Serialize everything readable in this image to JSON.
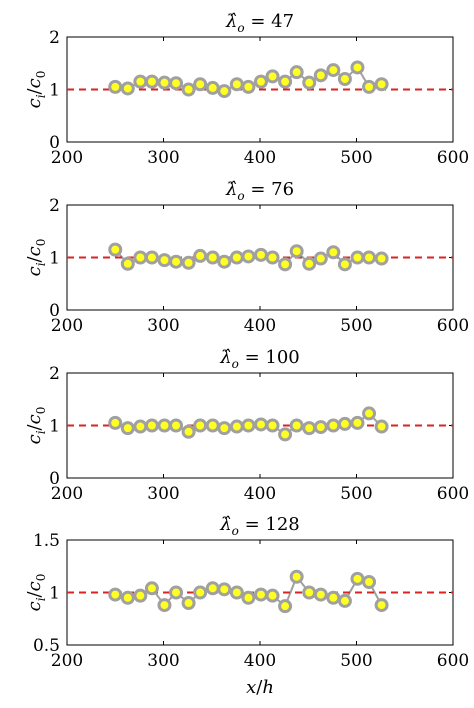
{
  "figure": {
    "xlabel_var": "x",
    "xlabel_sep": "/",
    "xlabel_var2": "h",
    "ylabel_var": "c",
    "ylabel_sub": "i",
    "ylabel_sep": "/",
    "ylabel_var2": "c",
    "ylabel_sub2": "0"
  },
  "colors": {
    "reference_line": "#dd2222",
    "marker_fill": "#ffff22",
    "marker_edge": "#a0a0a0",
    "axes": "#000000"
  },
  "chart_data": [
    {
      "type": "scatter",
      "title_symbol": "λ̂",
      "title_sub": "o",
      "title_value": "= 47",
      "xlim": [
        200,
        600
      ],
      "ylim": [
        0,
        2
      ],
      "xticks": [
        "200",
        "300",
        "400",
        "500",
        "600"
      ],
      "yticks": [
        "0",
        "1",
        "2"
      ],
      "reference_line": 1,
      "grid": false,
      "x": [
        250,
        263,
        276,
        288,
        301,
        313,
        326,
        338,
        351,
        363,
        376,
        388,
        401,
        413,
        426,
        438,
        451,
        463,
        476,
        488,
        501,
        513,
        526
      ],
      "y": [
        1.05,
        1.02,
        1.15,
        1.15,
        1.13,
        1.12,
        1.0,
        1.1,
        1.03,
        0.97,
        1.1,
        1.05,
        1.15,
        1.25,
        1.15,
        1.33,
        1.13,
        1.27,
        1.37,
        1.2,
        1.42,
        1.05,
        1.1
      ]
    },
    {
      "type": "scatter",
      "title_symbol": "λ̂",
      "title_sub": "o",
      "title_value": "= 76",
      "xlim": [
        200,
        600
      ],
      "ylim": [
        0,
        2
      ],
      "xticks": [
        "200",
        "300",
        "400",
        "500",
        "600"
      ],
      "yticks": [
        "0",
        "1",
        "2"
      ],
      "reference_line": 1,
      "grid": false,
      "x": [
        250,
        263,
        276,
        288,
        301,
        313,
        326,
        338,
        351,
        363,
        376,
        388,
        401,
        413,
        426,
        438,
        451,
        463,
        476,
        488,
        501,
        513,
        526
      ],
      "y": [
        1.15,
        0.88,
        1.0,
        1.0,
        0.95,
        0.92,
        0.9,
        1.03,
        1.0,
        0.92,
        1.0,
        1.02,
        1.05,
        1.0,
        0.87,
        1.12,
        0.88,
        0.98,
        1.1,
        0.87,
        1.0,
        1.0,
        0.98
      ]
    },
    {
      "type": "scatter",
      "title_symbol": "λ̂",
      "title_sub": "o",
      "title_value": "= 100",
      "xlim": [
        200,
        600
      ],
      "ylim": [
        0,
        2
      ],
      "xticks": [
        "200",
        "300",
        "400",
        "500",
        "600"
      ],
      "yticks": [
        "0",
        "1",
        "2"
      ],
      "reference_line": 1,
      "grid": false,
      "x": [
        250,
        263,
        276,
        288,
        301,
        313,
        326,
        338,
        351,
        363,
        376,
        388,
        401,
        413,
        426,
        438,
        451,
        463,
        476,
        488,
        501,
        513,
        526
      ],
      "y": [
        1.05,
        0.95,
        0.98,
        1.0,
        1.0,
        1.0,
        0.88,
        1.0,
        1.0,
        0.95,
        0.98,
        1.0,
        1.02,
        1.0,
        0.83,
        1.0,
        0.95,
        0.97,
        1.0,
        1.03,
        1.05,
        1.23,
        0.98
      ]
    },
    {
      "type": "scatter",
      "title_symbol": "λ̂",
      "title_sub": "o",
      "title_value": "= 128",
      "xlim": [
        200,
        600
      ],
      "ylim": [
        0.5,
        1.5
      ],
      "xticks": [
        "200",
        "300",
        "400",
        "500",
        "600"
      ],
      "yticks": [
        "0.5",
        "1",
        "1.5"
      ],
      "reference_line": 1,
      "grid": false,
      "x": [
        250,
        263,
        276,
        288,
        301,
        313,
        326,
        338,
        351,
        363,
        376,
        388,
        401,
        413,
        426,
        438,
        451,
        463,
        476,
        488,
        501,
        513,
        526
      ],
      "y": [
        0.98,
        0.95,
        0.97,
        1.04,
        0.88,
        1.0,
        0.9,
        1.0,
        1.04,
        1.03,
        1.0,
        0.95,
        0.98,
        0.97,
        0.87,
        1.15,
        1.0,
        0.98,
        0.95,
        0.92,
        1.13,
        1.1,
        0.88
      ]
    }
  ]
}
